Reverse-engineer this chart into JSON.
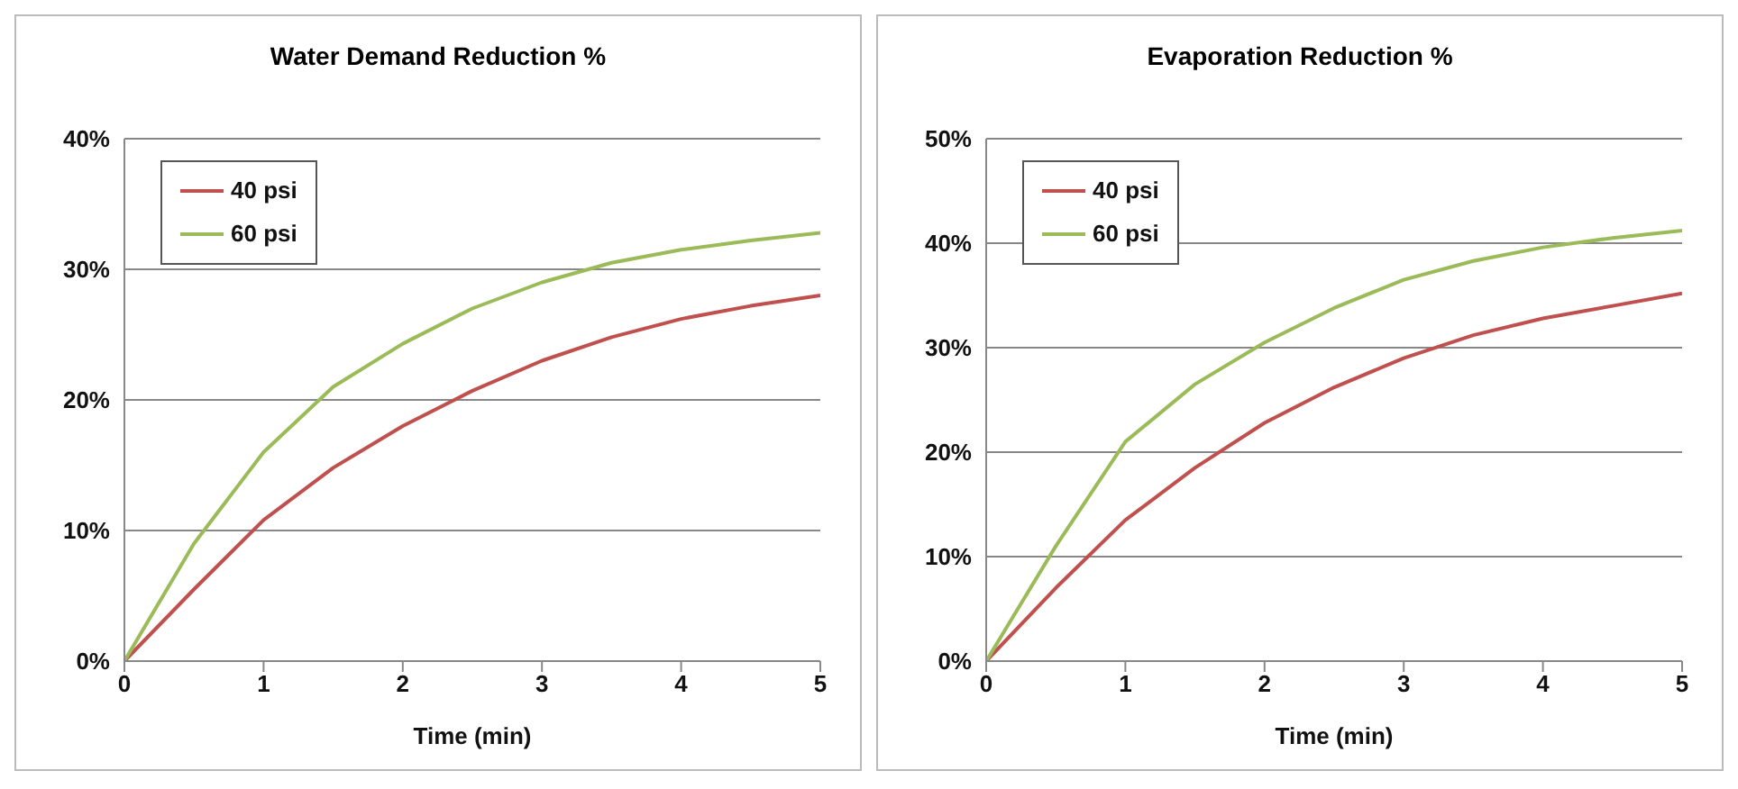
{
  "chart_data": [
    {
      "type": "line",
      "title": "Water Demand Reduction %",
      "xlabel": "Time (min)",
      "x": [
        0,
        0.5,
        1,
        1.5,
        2,
        2.5,
        3,
        3.5,
        4,
        4.5,
        5
      ],
      "xlim": [
        0,
        5
      ],
      "xticks": [
        0,
        1,
        2,
        3,
        4,
        5
      ],
      "ylim": [
        0,
        40
      ],
      "yticks": [
        {
          "value": 0,
          "label": "0%"
        },
        {
          "value": 10,
          "label": "10%"
        },
        {
          "value": 20,
          "label": "20%"
        },
        {
          "value": 30,
          "label": "30%"
        },
        {
          "value": 40,
          "label": "40%"
        }
      ],
      "grid": "y",
      "legend": "top left",
      "marker": "none",
      "line_style": "solid",
      "series": [
        {
          "name": "40 psi",
          "color": "#c0504d",
          "values": [
            0,
            5.5,
            10.8,
            14.8,
            18,
            20.7,
            23,
            24.8,
            26.2,
            27.2,
            28
          ]
        },
        {
          "name": "60 psi",
          "color": "#9bbb59",
          "values": [
            0,
            9,
            16,
            21,
            24.3,
            27,
            29,
            30.5,
            31.5,
            32.2,
            32.8
          ]
        }
      ]
    },
    {
      "type": "line",
      "title": "Evaporation Reduction %",
      "xlabel": "Time (min)",
      "x": [
        0,
        0.5,
        1,
        1.5,
        2,
        2.5,
        3,
        3.5,
        4,
        4.5,
        5
      ],
      "xlim": [
        0,
        5
      ],
      "xticks": [
        0,
        1,
        2,
        3,
        4,
        5
      ],
      "ylim": [
        0,
        50
      ],
      "yticks": [
        {
          "value": 0,
          "label": "0%"
        },
        {
          "value": 10,
          "label": "10%"
        },
        {
          "value": 20,
          "label": "20%"
        },
        {
          "value": 30,
          "label": "30%"
        },
        {
          "value": 40,
          "label": "40%"
        },
        {
          "value": 50,
          "label": "50%"
        }
      ],
      "grid": "y",
      "legend": "top left",
      "marker": "none",
      "line_style": "solid",
      "series": [
        {
          "name": "40 psi",
          "color": "#c0504d",
          "values": [
            0,
            7,
            13.5,
            18.5,
            22.8,
            26.2,
            29,
            31.2,
            32.8,
            34,
            35.2
          ]
        },
        {
          "name": "60 psi",
          "color": "#9bbb59",
          "values": [
            0,
            11,
            21,
            26.5,
            30.5,
            33.8,
            36.5,
            38.3,
            39.6,
            40.5,
            41.2
          ]
        }
      ]
    }
  ]
}
